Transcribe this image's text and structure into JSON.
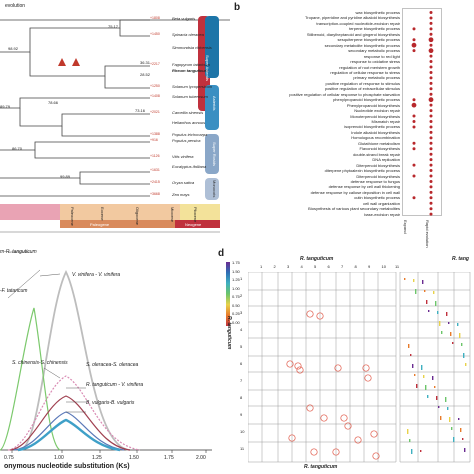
{
  "panel_labels": {
    "b": "b",
    "d": "d"
  },
  "tree": {
    "header": "evolution",
    "node_values": [
      "75.17",
      "98.92",
      "36.31",
      "28.52",
      "78.66",
      "89.79",
      "86.70",
      "99.89",
      "73.16"
    ],
    "species": [
      "Beta vulgaris",
      "Spinacia oleracea",
      "Simmondsia chinensis",
      "Fagopyrum tataricum",
      "Rheum tanguticum",
      "Solanum lycopersicum",
      "Solanum tuberosum",
      "Camellia sinensis",
      "Helianthus annuus",
      "Populus trichocarpa",
      "Populus persica",
      "Vitis vinifera",
      "Eucalyptus ifalliana",
      "Oryza sativa",
      "Zea mays"
    ],
    "group_labels": [
      "Super Asterids",
      "Asterids",
      "Super Rosids",
      "Monocots"
    ],
    "era_labels": [
      "Paleogene",
      "Neogene"
    ],
    "period_labels": [
      "Paleocene",
      "Eocene",
      "Oligocene",
      "Miocene",
      "Pliocene"
    ]
  },
  "go_terms": {
    "terms": [
      "wax biosynthetic process",
      "Tropane, piperidine and pyridine alkaloid biosynthesis",
      "transcription-coupled nucleotide-excision repair",
      "terpene biosynthetic process",
      "Stilbenoid, diarylheptanoid and gingerol biosynthesis",
      "sesquiterpene biosynthetic process",
      "secondary metabolite biosynthetic process",
      "secondary metabolic process",
      "response to red light",
      "response to oxidative stress",
      "regulation of root meristem growth",
      "regulation of cellular response to stress",
      "primary metabolic process",
      "positive regulation of response to stimulus",
      "positive regulation of extracellular stimulus",
      "positive regulation of cellular response to phosphate starvation",
      "phenylpropanoid biosynthetic process",
      "Phenylpropanoid biosynthesis",
      "Nucleotide excision repair",
      "Monoterpenoid biosynthesis",
      "Mismatch repair",
      "isoprenoid biosynthetic process",
      "Indole alkaloid biosynthesis",
      "Homologous recombination",
      "Glutathione metabolism",
      "Flavonoid biosynthesis",
      "double-strand break repair",
      "DNA replication",
      "Diterpenoid biosynthesis",
      "diterpene phytoalexin biosynthetic process",
      "Diterpenoid biosynthesis",
      "defense response to fungus",
      "defense response by cell wall thickening",
      "defense response by callose deposition in cell wall",
      "cutin biosynthetic process",
      "cell wall organization",
      "Biosynthesis of various plant secondary metabolites",
      "base-excision repair"
    ],
    "columns": [
      "Expand",
      "Rapid evolution"
    ]
  },
  "ks_plot": {
    "labels": [
      "m-R. tanguticum",
      "-F. tataricum",
      "V. vinifera - V. vinifera",
      "S. chinensis-S. chinensis",
      "S. oleracea-S. oleracea",
      "R. tanguticum - V. vinifera",
      "B. vulgaris-B. vulgaris"
    ],
    "xlabel": "onymous nucleotide substitution (Ks)",
    "xticks": [
      "0.75",
      "1.00",
      "1.25",
      "1.50",
      "1.75",
      "2.00"
    ]
  },
  "dotplot": {
    "title_x": "R. tanguticum",
    "title_x2": "R. tang",
    "xlabel_bottom": "R. tanguticum",
    "ylabel": "R. tanguticum",
    "col_ticks": [
      "1",
      "2",
      "3",
      "4",
      "5",
      "6",
      "7",
      "8",
      "9",
      "10",
      "11"
    ],
    "row_ticks": [
      "1",
      "2",
      "3",
      "4",
      "5",
      "6",
      "7",
      "8",
      "9",
      "10",
      "11"
    ],
    "legend_values": [
      "1.75",
      "1.50",
      "1.25",
      "1.00",
      "0.75",
      "0.50",
      "0.25",
      "0.00"
    ]
  }
}
